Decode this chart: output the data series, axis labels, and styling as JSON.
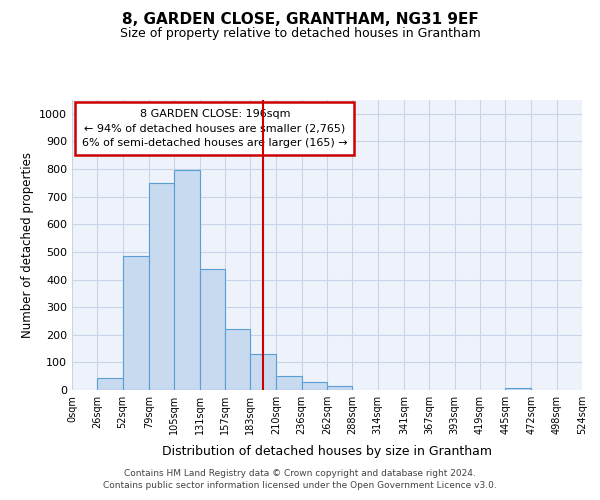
{
  "title": "8, GARDEN CLOSE, GRANTHAM, NG31 9EF",
  "subtitle": "Size of property relative to detached houses in Grantham",
  "xlabel": "Distribution of detached houses by size in Grantham",
  "ylabel": "Number of detached properties",
  "footer1": "Contains HM Land Registry data © Crown copyright and database right 2024.",
  "footer2": "Contains public sector information licensed under the Open Government Licence v3.0.",
  "property_size": 196,
  "annotation_line1": "8 GARDEN CLOSE: 196sqm",
  "annotation_line2": "← 94% of detached houses are smaller (2,765)",
  "annotation_line3": "6% of semi-detached houses are larger (165) →",
  "bins": [
    0,
    26,
    52,
    79,
    105,
    131,
    157,
    183,
    210,
    236,
    262,
    288,
    314,
    341,
    367,
    393,
    419,
    445,
    472,
    498,
    524
  ],
  "bin_labels": [
    "0sqm",
    "26sqm",
    "52sqm",
    "79sqm",
    "105sqm",
    "131sqm",
    "157sqm",
    "183sqm",
    "210sqm",
    "236sqm",
    "262sqm",
    "288sqm",
    "314sqm",
    "341sqm",
    "367sqm",
    "393sqm",
    "419sqm",
    "445sqm",
    "472sqm",
    "498sqm",
    "524sqm"
  ],
  "counts": [
    0,
    43,
    485,
    750,
    795,
    438,
    220,
    130,
    52,
    28,
    16,
    0,
    0,
    0,
    0,
    0,
    0,
    8,
    0,
    0,
    0
  ],
  "bar_color": "#c8daf0",
  "bar_edge_color": "#5a9fd4",
  "vline_color": "#cc0000",
  "annotation_box_color": "#cc0000",
  "grid_color": "#c8d4e8",
  "background_color": "#eef2fa",
  "ylim": [
    0,
    1050
  ],
  "yticks": [
    0,
    100,
    200,
    300,
    400,
    500,
    600,
    700,
    800,
    900,
    1000
  ]
}
